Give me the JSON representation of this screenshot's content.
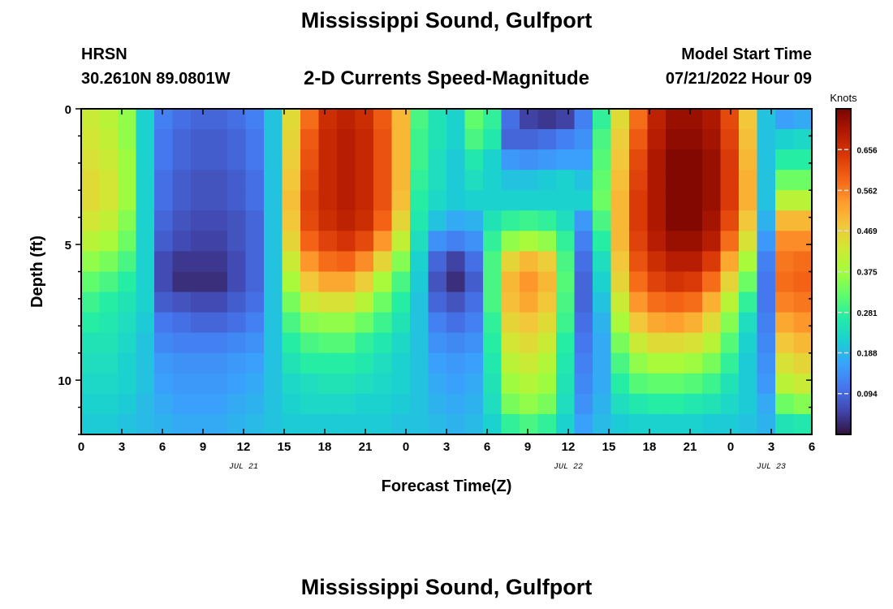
{
  "header": {
    "title": "Mississippi Sound, Gulfport",
    "station": "HRSN",
    "coords": "30.2610N  89.0801W",
    "subtitle": "2-D Currents Speed-Magnitude",
    "model_start_label": "Model Start Time",
    "model_start_value": "07/21/2022 Hour 09",
    "repeat_title": "Mississippi Sound, Gulfport"
  },
  "chart_data": {
    "type": "heatmap",
    "title": "Mississippi Sound, Gulfport",
    "subtitle": "2-D Currents Speed-Magnitude",
    "xlabel": "Forecast Time(Z)",
    "ylabel": "Depth (ft)",
    "x_hours": [
      0,
      54
    ],
    "xlim": [
      0,
      54
    ],
    "x_tick_labels": [
      "0",
      "3",
      "6",
      "9",
      "12",
      "15",
      "18",
      "21",
      "0",
      "3",
      "6",
      "9",
      "12",
      "15",
      "18",
      "21",
      "0",
      "3",
      "6"
    ],
    "date_labels": [
      {
        "label": "JUL 21",
        "hour": 12
      },
      {
        "label": "JUL 22",
        "hour": 36
      },
      {
        "label": "JUL 23",
        "hour": 51
      }
    ],
    "ylim": [
      0,
      12
    ],
    "y_inverted": true,
    "y_tick_labels": [
      "0",
      "5",
      "10"
    ],
    "y_tick_values": [
      0,
      5,
      10
    ],
    "colorbar": {
      "label": "Knots",
      "min": 0,
      "max": 0.75,
      "ticks": [
        "0.656",
        "0.562",
        "0.469",
        "0.375",
        "0.281",
        "0.188",
        "0.094"
      ],
      "tick_values": [
        0.656,
        0.562,
        0.469,
        0.375,
        0.281,
        0.188,
        0.094
      ],
      "colors": [
        "#30123b",
        "#4145ab",
        "#4675ed",
        "#39a2fc",
        "#1bcfd4",
        "#24eca6",
        "#61fc6c",
        "#a4fc3b",
        "#d1e834",
        "#f3c63a",
        "#fe9b2d",
        "#f36315",
        "#d93806",
        "#b11901",
        "#7a0402"
      ]
    },
    "grid": false,
    "speed_knots_by_depth": [
      {
        "depth_ft": 0.0,
        "values": [
          0.42,
          0.4,
          0.36,
          0.22,
          0.12,
          0.1,
          0.09,
          0.09,
          0.1,
          0.12,
          0.2,
          0.45,
          0.58,
          0.66,
          0.68,
          0.66,
          0.6,
          0.5,
          0.3,
          0.25,
          0.22,
          0.32,
          0.28,
          0.1,
          0.05,
          0.04,
          0.05,
          0.12,
          0.28,
          0.45,
          0.58,
          0.68,
          0.72,
          0.72,
          0.7,
          0.62,
          0.48,
          0.2,
          0.16,
          0.17
        ]
      },
      {
        "depth_ft": 0.75,
        "values": [
          0.43,
          0.41,
          0.36,
          0.22,
          0.11,
          0.09,
          0.08,
          0.08,
          0.09,
          0.11,
          0.2,
          0.46,
          0.6,
          0.67,
          0.69,
          0.67,
          0.61,
          0.5,
          0.29,
          0.25,
          0.22,
          0.3,
          0.26,
          0.09,
          0.09,
          0.1,
          0.12,
          0.14,
          0.3,
          0.47,
          0.6,
          0.69,
          0.73,
          0.73,
          0.71,
          0.63,
          0.49,
          0.2,
          0.22,
          0.23
        ]
      },
      {
        "depth_ft": 1.5,
        "values": [
          0.44,
          0.42,
          0.37,
          0.22,
          0.11,
          0.09,
          0.08,
          0.08,
          0.09,
          0.11,
          0.2,
          0.47,
          0.61,
          0.67,
          0.69,
          0.67,
          0.61,
          0.5,
          0.29,
          0.24,
          0.21,
          0.26,
          0.22,
          0.15,
          0.14,
          0.15,
          0.16,
          0.16,
          0.31,
          0.48,
          0.62,
          0.7,
          0.74,
          0.74,
          0.72,
          0.64,
          0.5,
          0.2,
          0.27,
          0.27
        ]
      },
      {
        "depth_ft": 2.25,
        "values": [
          0.45,
          0.43,
          0.37,
          0.22,
          0.1,
          0.08,
          0.07,
          0.07,
          0.08,
          0.1,
          0.2,
          0.48,
          0.62,
          0.67,
          0.69,
          0.67,
          0.61,
          0.5,
          0.28,
          0.24,
          0.21,
          0.24,
          0.22,
          0.2,
          0.2,
          0.21,
          0.22,
          0.2,
          0.32,
          0.49,
          0.63,
          0.7,
          0.74,
          0.74,
          0.72,
          0.64,
          0.51,
          0.2,
          0.33,
          0.33
        ]
      },
      {
        "depth_ft": 3.0,
        "values": [
          0.45,
          0.43,
          0.37,
          0.22,
          0.1,
          0.08,
          0.07,
          0.07,
          0.08,
          0.1,
          0.2,
          0.49,
          0.63,
          0.67,
          0.69,
          0.67,
          0.61,
          0.49,
          0.27,
          0.23,
          0.21,
          0.22,
          0.22,
          0.22,
          0.22,
          0.22,
          0.22,
          0.22,
          0.33,
          0.5,
          0.64,
          0.7,
          0.74,
          0.74,
          0.72,
          0.64,
          0.51,
          0.2,
          0.4,
          0.4
        ]
      },
      {
        "depth_ft": 3.75,
        "values": [
          0.43,
          0.41,
          0.35,
          0.22,
          0.09,
          0.07,
          0.06,
          0.06,
          0.07,
          0.09,
          0.2,
          0.48,
          0.62,
          0.66,
          0.68,
          0.66,
          0.59,
          0.46,
          0.26,
          0.2,
          0.17,
          0.18,
          0.25,
          0.28,
          0.29,
          0.28,
          0.24,
          0.15,
          0.3,
          0.5,
          0.64,
          0.7,
          0.74,
          0.74,
          0.71,
          0.62,
          0.48,
          0.18,
          0.5,
          0.5
        ]
      },
      {
        "depth_ft": 4.5,
        "values": [
          0.4,
          0.38,
          0.33,
          0.22,
          0.08,
          0.06,
          0.05,
          0.05,
          0.07,
          0.09,
          0.2,
          0.46,
          0.59,
          0.63,
          0.65,
          0.62,
          0.54,
          0.41,
          0.24,
          0.14,
          0.12,
          0.14,
          0.28,
          0.36,
          0.38,
          0.36,
          0.28,
          0.12,
          0.27,
          0.5,
          0.63,
          0.69,
          0.72,
          0.72,
          0.69,
          0.58,
          0.44,
          0.15,
          0.55,
          0.55
        ]
      },
      {
        "depth_ft": 5.25,
        "values": [
          0.36,
          0.34,
          0.3,
          0.22,
          0.06,
          0.04,
          0.04,
          0.04,
          0.06,
          0.09,
          0.2,
          0.42,
          0.54,
          0.58,
          0.59,
          0.55,
          0.46,
          0.35,
          0.22,
          0.09,
          0.05,
          0.1,
          0.3,
          0.46,
          0.5,
          0.47,
          0.3,
          0.1,
          0.24,
          0.48,
          0.61,
          0.66,
          0.69,
          0.69,
          0.64,
          0.52,
          0.38,
          0.12,
          0.57,
          0.58
        ]
      },
      {
        "depth_ft": 6.0,
        "values": [
          0.32,
          0.3,
          0.27,
          0.22,
          0.06,
          0.03,
          0.03,
          0.03,
          0.06,
          0.09,
          0.2,
          0.38,
          0.48,
          0.52,
          0.52,
          0.47,
          0.38,
          0.3,
          0.21,
          0.07,
          0.03,
          0.08,
          0.3,
          0.5,
          0.54,
          0.5,
          0.31,
          0.09,
          0.22,
          0.46,
          0.58,
          0.63,
          0.65,
          0.64,
          0.58,
          0.46,
          0.33,
          0.11,
          0.58,
          0.59
        ]
      },
      {
        "depth_ft": 6.75,
        "values": [
          0.29,
          0.27,
          0.25,
          0.22,
          0.08,
          0.07,
          0.06,
          0.06,
          0.08,
          0.1,
          0.2,
          0.34,
          0.42,
          0.44,
          0.44,
          0.4,
          0.33,
          0.27,
          0.2,
          0.09,
          0.07,
          0.1,
          0.3,
          0.49,
          0.52,
          0.48,
          0.3,
          0.09,
          0.2,
          0.42,
          0.54,
          0.58,
          0.59,
          0.58,
          0.51,
          0.4,
          0.28,
          0.11,
          0.56,
          0.57
        ]
      },
      {
        "depth_ft": 7.5,
        "values": [
          0.27,
          0.26,
          0.24,
          0.21,
          0.11,
          0.1,
          0.09,
          0.09,
          0.1,
          0.12,
          0.2,
          0.3,
          0.35,
          0.36,
          0.36,
          0.33,
          0.29,
          0.25,
          0.2,
          0.12,
          0.1,
          0.12,
          0.28,
          0.46,
          0.48,
          0.45,
          0.29,
          0.1,
          0.18,
          0.38,
          0.48,
          0.52,
          0.53,
          0.51,
          0.45,
          0.35,
          0.24,
          0.12,
          0.52,
          0.54
        ]
      },
      {
        "depth_ft": 8.25,
        "values": [
          0.25,
          0.25,
          0.23,
          0.2,
          0.13,
          0.12,
          0.12,
          0.12,
          0.13,
          0.14,
          0.2,
          0.27,
          0.3,
          0.31,
          0.31,
          0.28,
          0.26,
          0.23,
          0.2,
          0.14,
          0.13,
          0.14,
          0.27,
          0.43,
          0.45,
          0.42,
          0.27,
          0.11,
          0.17,
          0.34,
          0.42,
          0.45,
          0.45,
          0.44,
          0.4,
          0.31,
          0.22,
          0.13,
          0.48,
          0.5
        ]
      },
      {
        "depth_ft": 9.0,
        "values": [
          0.24,
          0.24,
          0.22,
          0.2,
          0.15,
          0.14,
          0.14,
          0.14,
          0.15,
          0.16,
          0.2,
          0.25,
          0.27,
          0.27,
          0.27,
          0.26,
          0.24,
          0.22,
          0.2,
          0.16,
          0.15,
          0.16,
          0.26,
          0.4,
          0.42,
          0.39,
          0.26,
          0.12,
          0.17,
          0.3,
          0.36,
          0.38,
          0.38,
          0.37,
          0.34,
          0.28,
          0.21,
          0.14,
          0.44,
          0.46
        ]
      },
      {
        "depth_ft": 9.75,
        "values": [
          0.23,
          0.23,
          0.22,
          0.2,
          0.16,
          0.15,
          0.15,
          0.15,
          0.16,
          0.17,
          0.2,
          0.23,
          0.24,
          0.25,
          0.25,
          0.24,
          0.23,
          0.22,
          0.2,
          0.17,
          0.16,
          0.17,
          0.25,
          0.37,
          0.39,
          0.37,
          0.25,
          0.13,
          0.17,
          0.27,
          0.31,
          0.32,
          0.32,
          0.31,
          0.29,
          0.25,
          0.21,
          0.15,
          0.4,
          0.42
        ]
      },
      {
        "depth_ft": 10.5,
        "values": [
          0.22,
          0.22,
          0.21,
          0.19,
          0.17,
          0.16,
          0.16,
          0.16,
          0.17,
          0.18,
          0.2,
          0.22,
          0.23,
          0.23,
          0.23,
          0.22,
          0.22,
          0.21,
          0.2,
          0.18,
          0.17,
          0.18,
          0.24,
          0.34,
          0.36,
          0.34,
          0.24,
          0.14,
          0.18,
          0.24,
          0.26,
          0.27,
          0.27,
          0.26,
          0.25,
          0.23,
          0.21,
          0.17,
          0.33,
          0.35
        ]
      },
      {
        "depth_ft": 11.25,
        "values": [
          0.21,
          0.21,
          0.2,
          0.19,
          0.18,
          0.17,
          0.17,
          0.17,
          0.18,
          0.19,
          0.2,
          0.21,
          0.21,
          0.21,
          0.21,
          0.21,
          0.21,
          0.2,
          0.2,
          0.19,
          0.18,
          0.19,
          0.22,
          0.28,
          0.3,
          0.28,
          0.22,
          0.16,
          0.19,
          0.21,
          0.22,
          0.22,
          0.22,
          0.22,
          0.21,
          0.21,
          0.2,
          0.18,
          0.25,
          0.26
        ]
      }
    ]
  }
}
